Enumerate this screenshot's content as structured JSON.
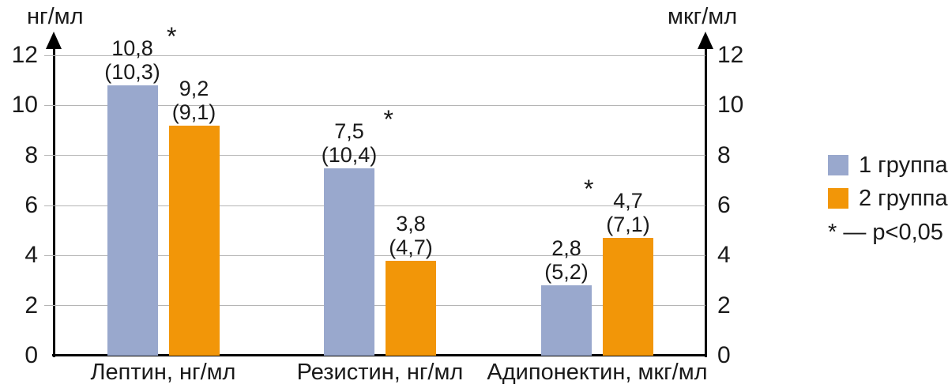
{
  "chart_data": {
    "type": "bar",
    "title": "",
    "left_axis": {
      "unit": "нг/мл",
      "ticks": [
        0,
        2,
        4,
        6,
        8,
        10,
        12
      ],
      "range": [
        0,
        12
      ]
    },
    "right_axis": {
      "unit": "мкг/мл",
      "ticks": [
        0,
        2,
        4,
        6,
        8,
        10,
        12
      ],
      "range": [
        0,
        12
      ]
    },
    "grid": true,
    "categories": [
      "Лептин, нг/мл",
      "Резистин, нг/мл",
      "Адипонектин, мкг/мл"
    ],
    "series": [
      {
        "name": "1 группа",
        "color": "#99a8cd",
        "values": [
          10.8,
          7.5,
          2.8
        ],
        "value_labels": [
          "10,8",
          "7,5",
          "2,8"
        ],
        "sublabels": [
          "(10,3)",
          "(10,4)",
          "(5,2)"
        ],
        "significant": [
          true,
          true,
          false
        ],
        "asterisk_side": "right"
      },
      {
        "name": "2 группа",
        "color": "#f29608",
        "values": [
          9.2,
          3.8,
          4.7
        ],
        "value_labels": [
          "9,2",
          "3,8",
          "4,7"
        ],
        "sublabels": [
          "(9,1)",
          "(4,7)",
          "(7,1)"
        ],
        "significant": [
          false,
          false,
          true
        ],
        "asterisk_side": "left"
      }
    ],
    "legend": {
      "position": "right",
      "entries": [
        {
          "label": "1 группа",
          "color": "#99a8cd"
        },
        {
          "label": "2 группа",
          "color": "#f29608"
        }
      ],
      "note": "* — p<0,05"
    }
  }
}
